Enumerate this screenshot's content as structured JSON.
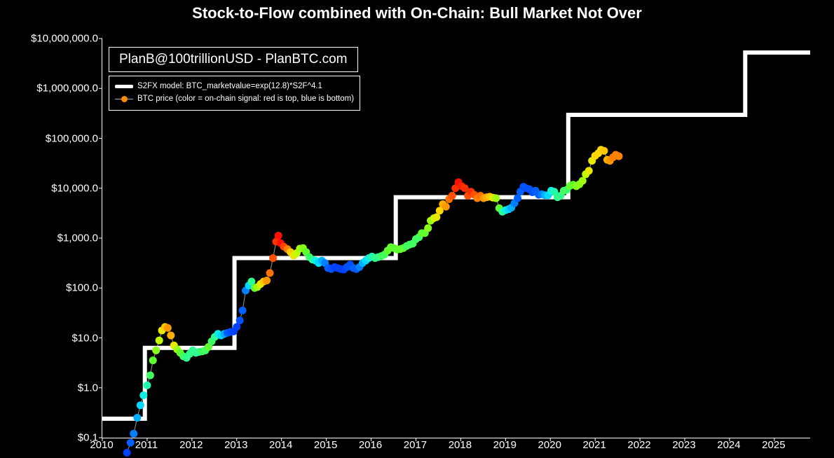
{
  "title": "Stock-to-Flow combined with On-Chain: Bull Market Not Over",
  "attribution": "PlanB@100trillionUSD  -  PlanBTC.com",
  "legend": {
    "line_label": "S2FX model: BTC_marketvalue=exp(12.8)*S2F^4.1",
    "dots_label": "BTC price (color = on-chain signal: red is top, blue is bottom)",
    "dot_color": "#ff8c00"
  },
  "chart": {
    "type": "line+scatter",
    "background_color": "#000000",
    "axis_color": "#ffffff",
    "title_fontsize": 22,
    "tick_fontsize": 15,
    "y_scale": "log",
    "x_range": [
      2010,
      2025.8
    ],
    "y_range_log10": [
      -1,
      7
    ],
    "y_ticks": [
      {
        "log10": -1,
        "label": "$0.1"
      },
      {
        "log10": 0,
        "label": "$1.0"
      },
      {
        "log10": 1,
        "label": "$10.0"
      },
      {
        "log10": 2,
        "label": "$100.0"
      },
      {
        "log10": 3,
        "label": "$1,000.0"
      },
      {
        "log10": 4,
        "label": "$10,000.0"
      },
      {
        "log10": 5,
        "label": "$100,000.0"
      },
      {
        "log10": 6,
        "label": "$1,000,000.0"
      },
      {
        "log10": 7,
        "label": "$10,000,000.0"
      }
    ],
    "x_ticks": [
      2010,
      2011,
      2012,
      2013,
      2014,
      2015,
      2016,
      2017,
      2018,
      2019,
      2020,
      2021,
      2022,
      2023,
      2024,
      2025
    ],
    "model_line": {
      "color": "#ffffff",
      "width": 6,
      "steps": [
        {
          "x0": 2010.0,
          "x1": 2010.95,
          "log10y": -0.62
        },
        {
          "x0": 2010.95,
          "x1": 2012.95,
          "log10y": 0.8
        },
        {
          "x0": 2012.95,
          "x1": 2016.55,
          "log10y": 2.6
        },
        {
          "x0": 2016.55,
          "x1": 2020.4,
          "log10y": 3.82
        },
        {
          "x0": 2020.4,
          "x1": 2024.35,
          "log10y": 5.47
        },
        {
          "x0": 2024.35,
          "x1": 2025.8,
          "log10y": 6.72
        }
      ]
    },
    "btc_line_color": "#999999",
    "btc_line_width": 1,
    "dot_radius": 5.5,
    "btc_points": [
      {
        "x": 2010.55,
        "log10y": -1.3,
        "c": "#0040ff"
      },
      {
        "x": 2010.63,
        "log10y": -1.1,
        "c": "#0060ff"
      },
      {
        "x": 2010.7,
        "log10y": -0.92,
        "c": "#0080ff"
      },
      {
        "x": 2010.78,
        "log10y": -0.6,
        "c": "#00b0ff"
      },
      {
        "x": 2010.85,
        "log10y": -0.35,
        "c": "#00d8ff"
      },
      {
        "x": 2010.92,
        "log10y": -0.15,
        "c": "#10f0e0"
      },
      {
        "x": 2011.0,
        "log10y": 0.05,
        "c": "#20f8b0"
      },
      {
        "x": 2011.07,
        "log10y": 0.25,
        "c": "#40ff60"
      },
      {
        "x": 2011.13,
        "log10y": 0.55,
        "c": "#60ff30"
      },
      {
        "x": 2011.2,
        "log10y": 0.75,
        "c": "#88ff18"
      },
      {
        "x": 2011.27,
        "log10y": 0.95,
        "c": "#c0ff00"
      },
      {
        "x": 2011.33,
        "log10y": 1.15,
        "c": "#e8e800"
      },
      {
        "x": 2011.4,
        "log10y": 1.22,
        "c": "#ffc800"
      },
      {
        "x": 2011.46,
        "log10y": 1.2,
        "c": "#ff9800"
      },
      {
        "x": 2011.53,
        "log10y": 1.05,
        "c": "#ffb000"
      },
      {
        "x": 2011.6,
        "log10y": 0.85,
        "c": "#e8e800"
      },
      {
        "x": 2011.67,
        "log10y": 0.77,
        "c": "#a0ff10"
      },
      {
        "x": 2011.74,
        "log10y": 0.7,
        "c": "#60ff30"
      },
      {
        "x": 2011.81,
        "log10y": 0.63,
        "c": "#40ff60"
      },
      {
        "x": 2011.88,
        "log10y": 0.6,
        "c": "#30ff90"
      },
      {
        "x": 2011.95,
        "log10y": 0.68,
        "c": "#30ff90"
      },
      {
        "x": 2012.02,
        "log10y": 0.75,
        "c": "#30ff90"
      },
      {
        "x": 2012.09,
        "log10y": 0.7,
        "c": "#30ff90"
      },
      {
        "x": 2012.16,
        "log10y": 0.72,
        "c": "#30ff90"
      },
      {
        "x": 2012.23,
        "log10y": 0.73,
        "c": "#40ff60"
      },
      {
        "x": 2012.3,
        "log10y": 0.75,
        "c": "#40ff60"
      },
      {
        "x": 2012.37,
        "log10y": 0.82,
        "c": "#60ff30"
      },
      {
        "x": 2012.44,
        "log10y": 0.93,
        "c": "#40ff60"
      },
      {
        "x": 2012.51,
        "log10y": 1.02,
        "c": "#30ff90"
      },
      {
        "x": 2012.58,
        "log10y": 1.08,
        "c": "#10f0e0"
      },
      {
        "x": 2012.65,
        "log10y": 1.05,
        "c": "#00d8ff"
      },
      {
        "x": 2012.72,
        "log10y": 1.08,
        "c": "#00b0ff"
      },
      {
        "x": 2012.79,
        "log10y": 1.1,
        "c": "#0060ff"
      },
      {
        "x": 2012.86,
        "log10y": 1.12,
        "c": "#0050ff"
      },
      {
        "x": 2012.93,
        "log10y": 1.13,
        "c": "#0040ff"
      },
      {
        "x": 2013.0,
        "log10y": 1.22,
        "c": "#0040ff"
      },
      {
        "x": 2013.07,
        "log10y": 1.35,
        "c": "#0050ff"
      },
      {
        "x": 2013.13,
        "log10y": 1.55,
        "c": "#0060ff"
      },
      {
        "x": 2013.2,
        "log10y": 1.95,
        "c": "#0080ff"
      },
      {
        "x": 2013.27,
        "log10y": 2.05,
        "c": "#00d8ff"
      },
      {
        "x": 2013.33,
        "log10y": 2.13,
        "c": "#30ff90"
      },
      {
        "x": 2013.4,
        "log10y": 2.0,
        "c": "#60ff30"
      },
      {
        "x": 2013.46,
        "log10y": 2.02,
        "c": "#a0ff10"
      },
      {
        "x": 2013.53,
        "log10y": 2.08,
        "c": "#e8e800"
      },
      {
        "x": 2013.6,
        "log10y": 2.13,
        "c": "#ffc800"
      },
      {
        "x": 2013.67,
        "log10y": 2.15,
        "c": "#ff9800"
      },
      {
        "x": 2013.74,
        "log10y": 2.3,
        "c": "#ff7000"
      },
      {
        "x": 2013.81,
        "log10y": 2.6,
        "c": "#ff5000"
      },
      {
        "x": 2013.88,
        "log10y": 2.93,
        "c": "#ff3000"
      },
      {
        "x": 2013.93,
        "log10y": 3.05,
        "c": "#ff1000"
      },
      {
        "x": 2013.98,
        "log10y": 2.9,
        "c": "#ff1000"
      },
      {
        "x": 2014.05,
        "log10y": 2.83,
        "c": "#ff4000"
      },
      {
        "x": 2014.13,
        "log10y": 2.78,
        "c": "#ff8000"
      },
      {
        "x": 2014.2,
        "log10y": 2.72,
        "c": "#ffc800"
      },
      {
        "x": 2014.27,
        "log10y": 2.65,
        "c": "#e8e800"
      },
      {
        "x": 2014.34,
        "log10y": 2.7,
        "c": "#c0ff00"
      },
      {
        "x": 2014.41,
        "log10y": 2.79,
        "c": "#a0ff10"
      },
      {
        "x": 2014.48,
        "log10y": 2.8,
        "c": "#88ff18"
      },
      {
        "x": 2014.55,
        "log10y": 2.72,
        "c": "#60ff30"
      },
      {
        "x": 2014.62,
        "log10y": 2.62,
        "c": "#40ff60"
      },
      {
        "x": 2014.69,
        "log10y": 2.57,
        "c": "#30ff90"
      },
      {
        "x": 2014.76,
        "log10y": 2.55,
        "c": "#10f0e0"
      },
      {
        "x": 2014.83,
        "log10y": 2.5,
        "c": "#00d8ff"
      },
      {
        "x": 2014.9,
        "log10y": 2.55,
        "c": "#00b0ff"
      },
      {
        "x": 2014.97,
        "log10y": 2.5,
        "c": "#0080ff"
      },
      {
        "x": 2015.04,
        "log10y": 2.4,
        "c": "#0060ff"
      },
      {
        "x": 2015.11,
        "log10y": 2.38,
        "c": "#0050ff"
      },
      {
        "x": 2015.18,
        "log10y": 2.42,
        "c": "#0040ff"
      },
      {
        "x": 2015.25,
        "log10y": 2.4,
        "c": "#0040ff"
      },
      {
        "x": 2015.32,
        "log10y": 2.38,
        "c": "#0040ff"
      },
      {
        "x": 2015.39,
        "log10y": 2.37,
        "c": "#0040ff"
      },
      {
        "x": 2015.46,
        "log10y": 2.42,
        "c": "#0050ff"
      },
      {
        "x": 2015.53,
        "log10y": 2.47,
        "c": "#0050ff"
      },
      {
        "x": 2015.6,
        "log10y": 2.4,
        "c": "#0060ff"
      },
      {
        "x": 2015.67,
        "log10y": 2.38,
        "c": "#0060ff"
      },
      {
        "x": 2015.74,
        "log10y": 2.42,
        "c": "#0080ff"
      },
      {
        "x": 2015.81,
        "log10y": 2.5,
        "c": "#00b0ff"
      },
      {
        "x": 2015.88,
        "log10y": 2.55,
        "c": "#00d8ff"
      },
      {
        "x": 2015.95,
        "log10y": 2.6,
        "c": "#10f0e0"
      },
      {
        "x": 2016.02,
        "log10y": 2.63,
        "c": "#20f8b0"
      },
      {
        "x": 2016.09,
        "log10y": 2.6,
        "c": "#30ff90"
      },
      {
        "x": 2016.16,
        "log10y": 2.62,
        "c": "#30ff90"
      },
      {
        "x": 2016.23,
        "log10y": 2.64,
        "c": "#40ff60"
      },
      {
        "x": 2016.3,
        "log10y": 2.67,
        "c": "#40ff60"
      },
      {
        "x": 2016.37,
        "log10y": 2.75,
        "c": "#60ff30"
      },
      {
        "x": 2016.44,
        "log10y": 2.82,
        "c": "#60ff30"
      },
      {
        "x": 2016.51,
        "log10y": 2.8,
        "c": "#60ff30"
      },
      {
        "x": 2016.58,
        "log10y": 2.77,
        "c": "#60ff30"
      },
      {
        "x": 2016.65,
        "log10y": 2.78,
        "c": "#60ff30"
      },
      {
        "x": 2016.72,
        "log10y": 2.8,
        "c": "#60ff30"
      },
      {
        "x": 2016.79,
        "log10y": 2.84,
        "c": "#40ff60"
      },
      {
        "x": 2016.86,
        "log10y": 2.87,
        "c": "#40ff60"
      },
      {
        "x": 2016.93,
        "log10y": 2.89,
        "c": "#40ff60"
      },
      {
        "x": 2017.0,
        "log10y": 2.98,
        "c": "#40ff60"
      },
      {
        "x": 2017.07,
        "log10y": 3.02,
        "c": "#40ff60"
      },
      {
        "x": 2017.13,
        "log10y": 3.1,
        "c": "#60ff30"
      },
      {
        "x": 2017.2,
        "log10y": 3.1,
        "c": "#60ff30"
      },
      {
        "x": 2017.27,
        "log10y": 3.2,
        "c": "#88ff18"
      },
      {
        "x": 2017.33,
        "log10y": 3.35,
        "c": "#a0ff10"
      },
      {
        "x": 2017.4,
        "log10y": 3.4,
        "c": "#c0ff00"
      },
      {
        "x": 2017.46,
        "log10y": 3.42,
        "c": "#e8e800"
      },
      {
        "x": 2017.53,
        "log10y": 3.55,
        "c": "#ffd800"
      },
      {
        "x": 2017.6,
        "log10y": 3.68,
        "c": "#ffb000"
      },
      {
        "x": 2017.67,
        "log10y": 3.63,
        "c": "#ff9800"
      },
      {
        "x": 2017.74,
        "log10y": 3.78,
        "c": "#ff7000"
      },
      {
        "x": 2017.81,
        "log10y": 3.85,
        "c": "#ff5000"
      },
      {
        "x": 2017.88,
        "log10y": 4.0,
        "c": "#ff3000"
      },
      {
        "x": 2017.95,
        "log10y": 4.12,
        "c": "#ff1000"
      },
      {
        "x": 2018.02,
        "log10y": 4.04,
        "c": "#ff2000"
      },
      {
        "x": 2018.09,
        "log10y": 4.0,
        "c": "#ff3000"
      },
      {
        "x": 2018.16,
        "log10y": 3.85,
        "c": "#ff5000"
      },
      {
        "x": 2018.23,
        "log10y": 3.93,
        "c": "#ff3000"
      },
      {
        "x": 2018.3,
        "log10y": 3.87,
        "c": "#ff5000"
      },
      {
        "x": 2018.37,
        "log10y": 3.8,
        "c": "#ff8000"
      },
      {
        "x": 2018.44,
        "log10y": 3.85,
        "c": "#ff7000"
      },
      {
        "x": 2018.51,
        "log10y": 3.8,
        "c": "#ff9800"
      },
      {
        "x": 2018.58,
        "log10y": 3.82,
        "c": "#ffb000"
      },
      {
        "x": 2018.65,
        "log10y": 3.83,
        "c": "#ffc800"
      },
      {
        "x": 2018.72,
        "log10y": 3.81,
        "c": "#e8e800"
      },
      {
        "x": 2018.79,
        "log10y": 3.8,
        "c": "#a0ff10"
      },
      {
        "x": 2018.86,
        "log10y": 3.6,
        "c": "#60ff30"
      },
      {
        "x": 2018.93,
        "log10y": 3.53,
        "c": "#30ff90"
      },
      {
        "x": 2019.0,
        "log10y": 3.56,
        "c": "#10f0e0"
      },
      {
        "x": 2019.07,
        "log10y": 3.58,
        "c": "#00d8ff"
      },
      {
        "x": 2019.13,
        "log10y": 3.61,
        "c": "#00b0ff"
      },
      {
        "x": 2019.2,
        "log10y": 3.7,
        "c": "#0080ff"
      },
      {
        "x": 2019.27,
        "log10y": 3.8,
        "c": "#0060ff"
      },
      {
        "x": 2019.33,
        "log10y": 3.93,
        "c": "#0060ff"
      },
      {
        "x": 2019.4,
        "log10y": 4.03,
        "c": "#0050ff"
      },
      {
        "x": 2019.46,
        "log10y": 4.0,
        "c": "#0050ff"
      },
      {
        "x": 2019.53,
        "log10y": 3.98,
        "c": "#0050ff"
      },
      {
        "x": 2019.6,
        "log10y": 3.92,
        "c": "#0050ff"
      },
      {
        "x": 2019.67,
        "log10y": 3.95,
        "c": "#0060ff"
      },
      {
        "x": 2019.74,
        "log10y": 3.87,
        "c": "#0060ff"
      },
      {
        "x": 2019.81,
        "log10y": 3.88,
        "c": "#0080ff"
      },
      {
        "x": 2019.88,
        "log10y": 3.86,
        "c": "#00b0ff"
      },
      {
        "x": 2019.95,
        "log10y": 3.86,
        "c": "#00d8ff"
      },
      {
        "x": 2020.02,
        "log10y": 3.95,
        "c": "#10f0e0"
      },
      {
        "x": 2020.09,
        "log10y": 3.93,
        "c": "#20f8b0"
      },
      {
        "x": 2020.16,
        "log10y": 3.82,
        "c": "#30ff90"
      },
      {
        "x": 2020.23,
        "log10y": 3.85,
        "c": "#30ff90"
      },
      {
        "x": 2020.3,
        "log10y": 3.95,
        "c": "#40ff60"
      },
      {
        "x": 2020.37,
        "log10y": 3.97,
        "c": "#40ff60"
      },
      {
        "x": 2020.44,
        "log10y": 4.05,
        "c": "#60ff30"
      },
      {
        "x": 2020.51,
        "log10y": 4.07,
        "c": "#60ff30"
      },
      {
        "x": 2020.58,
        "log10y": 4.04,
        "c": "#88ff18"
      },
      {
        "x": 2020.65,
        "log10y": 4.08,
        "c": "#88ff18"
      },
      {
        "x": 2020.72,
        "log10y": 4.15,
        "c": "#a0ff10"
      },
      {
        "x": 2020.79,
        "log10y": 4.28,
        "c": "#c0ff00"
      },
      {
        "x": 2020.86,
        "log10y": 4.35,
        "c": "#e8e800"
      },
      {
        "x": 2020.93,
        "log10y": 4.55,
        "c": "#e8e800"
      },
      {
        "x": 2021.0,
        "log10y": 4.65,
        "c": "#ffd800"
      },
      {
        "x": 2021.07,
        "log10y": 4.7,
        "c": "#ffd800"
      },
      {
        "x": 2021.13,
        "log10y": 4.77,
        "c": "#ffd800"
      },
      {
        "x": 2021.2,
        "log10y": 4.75,
        "c": "#ffc800"
      },
      {
        "x": 2021.27,
        "log10y": 4.57,
        "c": "#ffb000"
      },
      {
        "x": 2021.33,
        "log10y": 4.55,
        "c": "#ff9800"
      },
      {
        "x": 2021.4,
        "log10y": 4.62,
        "c": "#ff8000"
      },
      {
        "x": 2021.46,
        "log10y": 4.67,
        "c": "#ff8000"
      },
      {
        "x": 2021.53,
        "log10y": 4.64,
        "c": "#ff8000"
      }
    ]
  }
}
